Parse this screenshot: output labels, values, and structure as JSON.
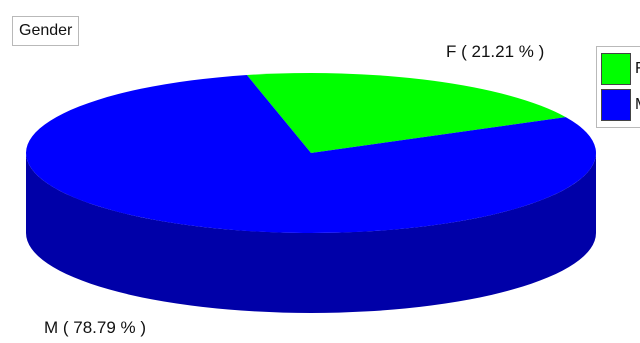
{
  "chart_data": {
    "type": "pie",
    "title": "Gender",
    "categories": [
      "F",
      "M"
    ],
    "values": [
      21.21,
      78.79
    ],
    "unit": "%",
    "labels": [
      "F ( 21.21 % )",
      "M ( 78.79 % )"
    ],
    "colors": [
      "#00ff00",
      "#0000ff"
    ],
    "side_colors": [
      "#00b400",
      "#0000a8"
    ],
    "legend": {
      "position": "right",
      "items": [
        "F",
        "M"
      ]
    }
  }
}
